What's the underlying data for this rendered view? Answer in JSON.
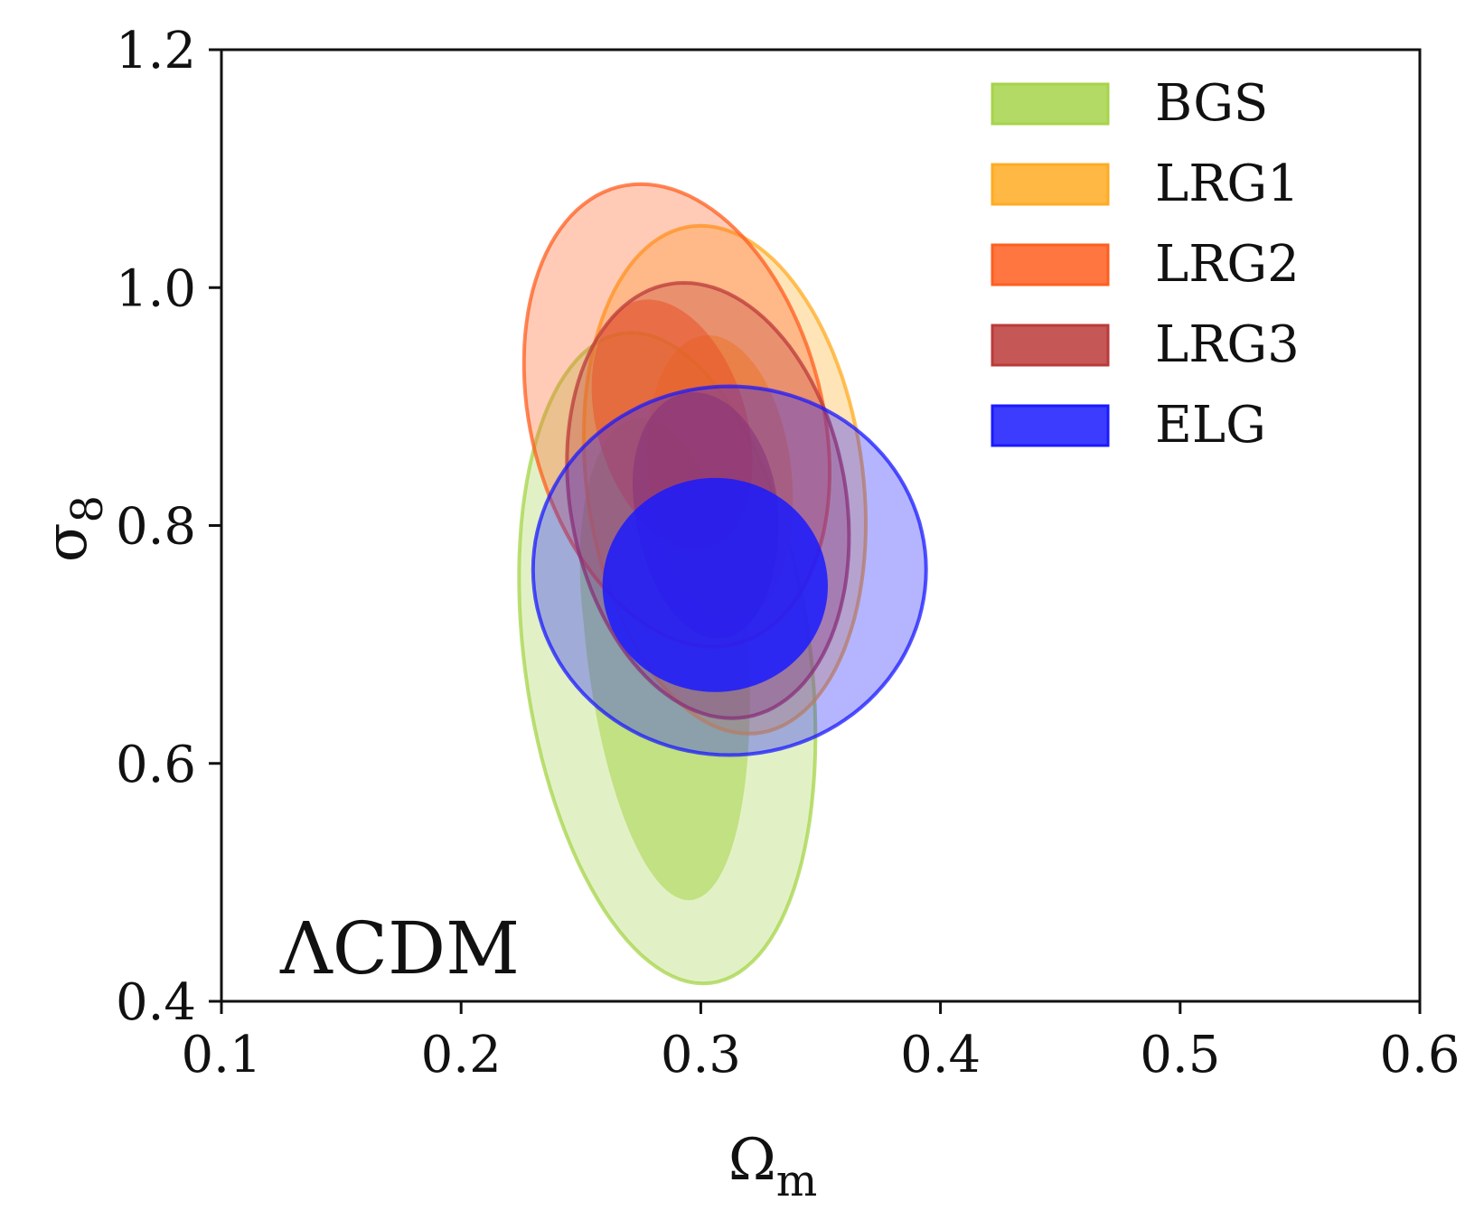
{
  "chart_data": {
    "type": "contour",
    "title": "",
    "xlabel": "Ω",
    "xlabel_sub": "m",
    "ylabel": "σ",
    "ylabel_sub": "8",
    "xlim": [
      0.1,
      0.6
    ],
    "ylim": [
      0.4,
      1.2
    ],
    "x_ticks": [
      0.1,
      0.2,
      0.3,
      0.4,
      0.5,
      0.6
    ],
    "x_tick_labels": [
      "0.1",
      "0.2",
      "0.3",
      "0.4",
      "0.5",
      "0.6"
    ],
    "y_ticks": [
      0.4,
      0.6,
      0.8,
      1.0,
      1.2
    ],
    "y_tick_labels": [
      "0.4",
      "0.6",
      "0.8",
      "1.0",
      "1.2"
    ],
    "grid": false,
    "legend_position": "top-right",
    "annotation": "ΛCDM",
    "series": [
      {
        "name": "BGS",
        "color": "#a6d44a",
        "contours": {
          "outer_68": {
            "center": [
              0.286,
              0.69
            ],
            "half_width": 0.06,
            "y_range": [
              0.415,
              0.962
            ],
            "skew": -0.015
          },
          "inner_95": {
            "center": [
              0.285,
              0.72
            ],
            "half_width": 0.034,
            "y_range": [
              0.485,
              0.89
            ],
            "skew": -0.01
          }
        }
      },
      {
        "name": "LRG1",
        "color": "#ffab22",
        "contours": {
          "outer_68": {
            "center": [
              0.31,
              0.838
            ],
            "half_width": 0.058,
            "y_range": [
              0.625,
              1.052
            ],
            "skew": -0.01
          },
          "inner_95": {
            "center": [
              0.308,
              0.842
            ],
            "half_width": 0.03,
            "y_range": [
              0.72,
              0.96
            ],
            "skew": -0.005
          }
        }
      },
      {
        "name": "LRG2",
        "color": "#ff5e1f",
        "contours": {
          "outer_68": {
            "center": [
              0.29,
              0.89
            ],
            "half_width": 0.062,
            "y_range": [
              0.698,
              1.087
            ],
            "skew": -0.015
          },
          "inner_95": {
            "center": [
              0.288,
              0.885
            ],
            "half_width": 0.032,
            "y_range": [
              0.78,
              0.99
            ],
            "skew": -0.01
          }
        }
      },
      {
        "name": "LRG3",
        "color": "#bb3a3a",
        "contours": {
          "outer_68": {
            "center": [
              0.303,
              0.822
            ],
            "half_width": 0.058,
            "y_range": [
              0.638,
              1.004
            ],
            "skew": -0.01
          },
          "inner_95": {
            "center": [
              0.302,
              0.82
            ],
            "half_width": 0.03,
            "y_range": [
              0.705,
              0.912
            ],
            "skew": -0.005
          }
        }
      },
      {
        "name": "ELG",
        "color": "#1a1aff",
        "contours": {
          "outer_68": {
            "center": [
              0.312,
              0.763
            ],
            "half_width": 0.082,
            "y_range": [
              0.607,
              0.917
            ],
            "skew": 0.0
          },
          "inner_95": {
            "center": [
              0.306,
              0.749
            ],
            "half_width": 0.047,
            "y_range": [
              0.66,
              0.84
            ],
            "skew": 0.0
          }
        }
      }
    ]
  }
}
